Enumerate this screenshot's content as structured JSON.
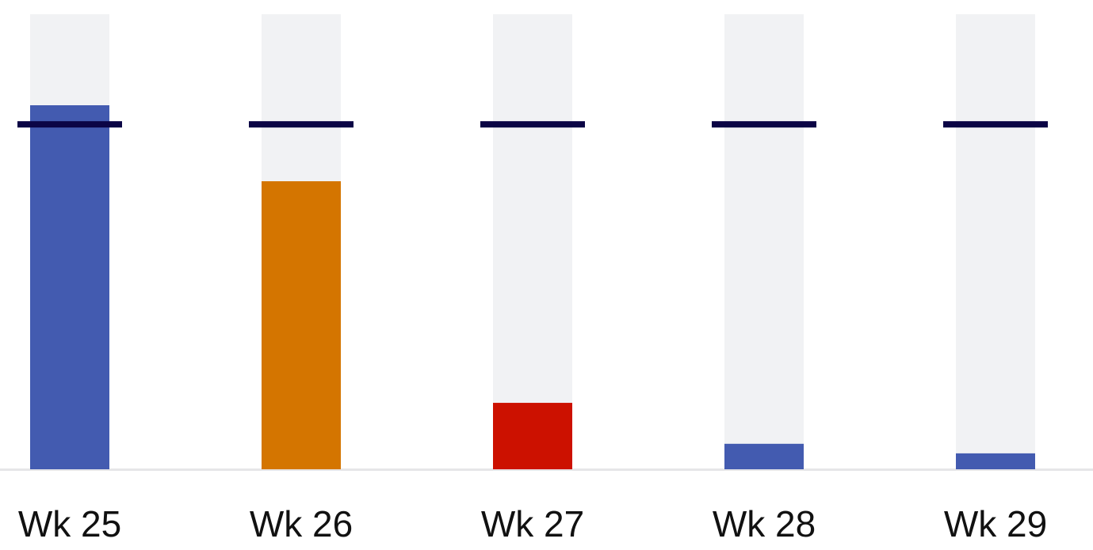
{
  "chart_data": {
    "type": "bar",
    "title": "",
    "xlabel": "",
    "ylabel": "",
    "ylim": [
      0,
      100
    ],
    "grid": false,
    "categories": [
      "Wk 25",
      "Wk 26",
      "Wk 27",
      "Wk 28",
      "Wk 29"
    ],
    "values": [
      80,
      63.3,
      14.6,
      5.6,
      3.5
    ],
    "target": 75.8,
    "bar_colors": [
      "#435bb0",
      "#d47500",
      "#cc1100",
      "#435bb0",
      "#435bb0"
    ],
    "track_color": "#f1f2f4",
    "target_color": "#0b0545",
    "baseline_color": "#e6e6e8"
  }
}
